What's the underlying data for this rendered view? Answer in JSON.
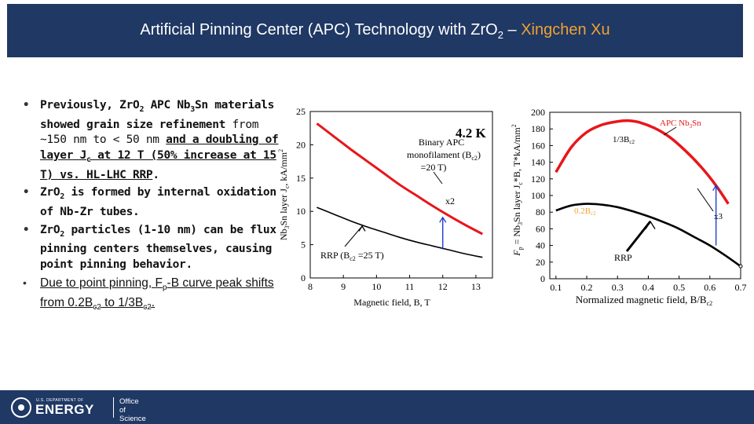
{
  "header": {
    "title_prefix": "Artificial Pinning Center (APC) Technology with Zr",
    "title_o": "O",
    "title_sub": "2",
    "title_dash": " – ",
    "title_author": "Xingchen Xu"
  },
  "bullets": {
    "b1": {
      "a": "Previously, ZrO",
      "sub1": "2",
      "b": " APC Nb",
      "sub2": "3",
      "c": "Sn materials showed grain size ",
      "d": "refinement",
      "e": " from ~150 nm to < 50 nm ",
      "f": "and a doubling of layer J",
      "f_sub": "c",
      "g": " at 12 T (50% increase at 15 T) vs. HL-LHC RRP",
      "h": "."
    },
    "b2": {
      "a": "ZrO",
      "sub": "2",
      "b": " is formed by internal oxidation of Nb-Zr tubes."
    },
    "b3": {
      "a": "ZrO",
      "sub": "2",
      "b": " particles (1-10 nm) can be flux pinning centers themselves, causing point pinning behavior."
    },
    "b4": {
      "a": "Due to point pinning, F",
      "sub1": "p",
      "b": "-B curve peak shifts from 0.2B",
      "sub2": "c2",
      "c": " to 1/3B",
      "sub3": "c2",
      "d": "."
    }
  },
  "footer": {
    "dept_line": "U.S. DEPARTMENT OF",
    "energy": "ENERGY",
    "office_line1": "Office of",
    "office_line2": "Science"
  },
  "colors": {
    "header_bg": "#1f3864",
    "author": "#f0a232",
    "apc": "#e8161b",
    "rrp": "#000000",
    "arrow": "#1f3dcc"
  },
  "chart_data": [
    {
      "type": "line",
      "temperature_label": "4.2 K",
      "xlabel": "Magnetic field, B, T",
      "ylabel_a": "Nb",
      "ylabel_sub1": "3",
      "ylabel_b": "Sn layer J",
      "ylabel_sub2": "c",
      "ylabel_c": ", kA/mm",
      "ylabel_sup": "2",
      "xlim": [
        8,
        13.5
      ],
      "ylim": [
        0,
        25
      ],
      "xticks": [
        8,
        9,
        10,
        11,
        12,
        13
      ],
      "yticks": [
        0,
        5,
        10,
        15,
        20,
        25
      ],
      "series": [
        {
          "id": "apc",
          "label_line1": "Binary APC",
          "label_line2a": "monofilament (B",
          "label_line2_sub": "c2",
          "label_line3": "=20 T)",
          "x": [
            8.2,
            8.7,
            9.2,
            9.7,
            10.2,
            10.7,
            11.2,
            11.7,
            12.2,
            12.7,
            13.2
          ],
          "y": [
            23.2,
            21.3,
            19.4,
            17.6,
            15.8,
            14.0,
            12.4,
            10.8,
            9.3,
            7.9,
            6.6
          ]
        },
        {
          "id": "rrp",
          "label_a": "RRP (B",
          "label_sub": "c2",
          "label_b": " =25 T)",
          "x": [
            8.2,
            8.7,
            9.2,
            9.7,
            10.2,
            10.7,
            11.2,
            11.7,
            12.2,
            12.7,
            13.2
          ],
          "y": [
            10.6,
            9.6,
            8.6,
            7.7,
            6.9,
            6.1,
            5.4,
            4.8,
            4.2,
            3.6,
            3.1
          ]
        }
      ],
      "annotation": {
        "text": "x2",
        "x": 12,
        "y_from": 4.3,
        "y_to": 9.1
      }
    },
    {
      "type": "line",
      "xlabel_a": "Normalized magnetic field, B/B",
      "xlabel_sub": "c2",
      "ylabel_a": "F",
      "ylabel_sub1": "p",
      "ylabel_b": " = Nb",
      "ylabel_sub2": "3",
      "ylabel_c": "Sn layer J",
      "ylabel_sub3": "c",
      "ylabel_d": "*B, T*kA/mm",
      "ylabel_sup": "2",
      "xlim": [
        0.08,
        0.7
      ],
      "ylim": [
        0,
        200
      ],
      "xticks": [
        0.1,
        0.2,
        0.3,
        0.4,
        0.5,
        0.6,
        0.7
      ],
      "yticks": [
        0,
        20,
        40,
        60,
        80,
        100,
        120,
        140,
        160,
        180,
        200
      ],
      "series": [
        {
          "id": "apc",
          "label_a": "APC Nb",
          "label_sub": "3",
          "label_b": "Sn",
          "x": [
            0.1,
            0.15,
            0.2,
            0.25,
            0.3,
            0.333,
            0.37,
            0.42,
            0.47,
            0.52,
            0.57,
            0.62,
            0.66
          ],
          "y": [
            128,
            158,
            176,
            185,
            189,
            190,
            188,
            181,
            170,
            154,
            135,
            112,
            90
          ]
        },
        {
          "id": "rrp",
          "label": "RRP",
          "x": [
            0.1,
            0.15,
            0.2,
            0.25,
            0.3,
            0.35,
            0.4,
            0.45,
            0.5,
            0.55,
            0.6,
            0.65,
            0.7
          ],
          "y": [
            82,
            88,
            90,
            89,
            86,
            81,
            75,
            68,
            60,
            50,
            40,
            28,
            15
          ]
        }
      ],
      "annotations": [
        {
          "id": "peak_apc",
          "text_a": "1/3B",
          "text_sub": "c2",
          "x": 0.333,
          "y": 190
        },
        {
          "id": "peak_rrp",
          "text_a": "0.2B",
          "text_sub": "c2",
          "x": 0.2,
          "y": 90
        },
        {
          "id": "x3",
          "text": "x3",
          "x": 0.62,
          "y_from": 40,
          "y_to": 112
        }
      ]
    }
  ]
}
